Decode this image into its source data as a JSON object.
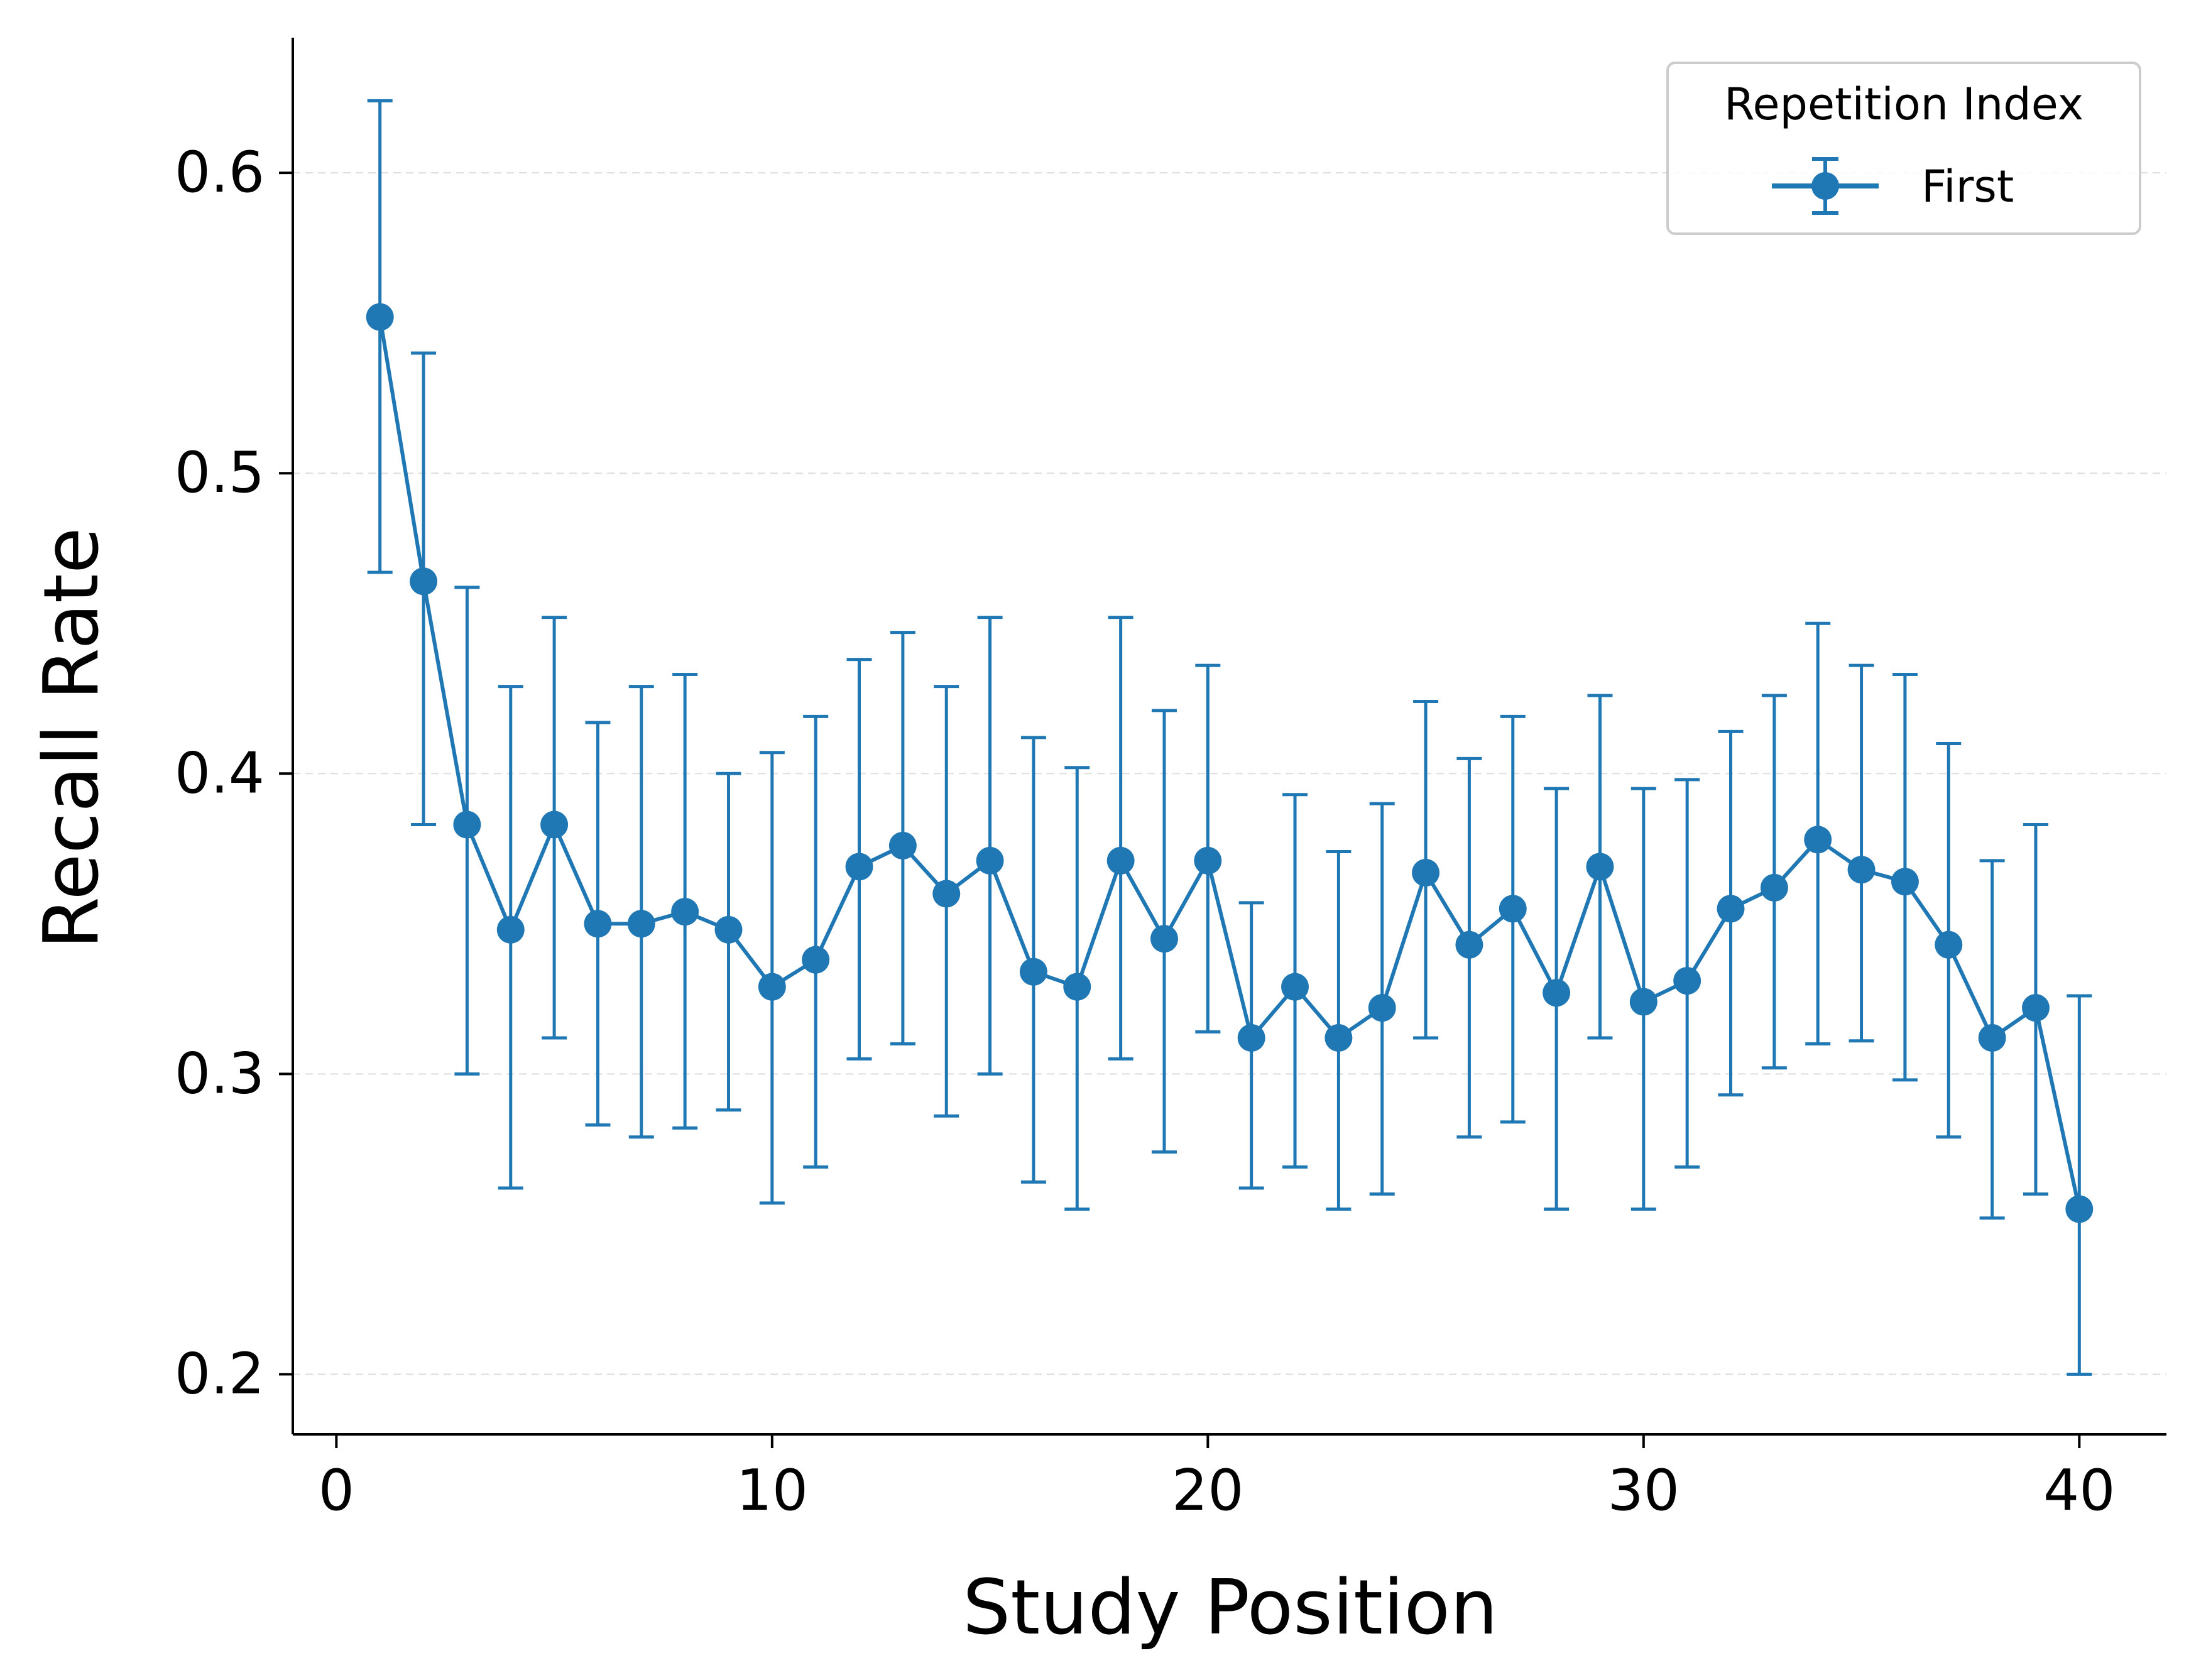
{
  "chart_data": {
    "type": "line",
    "xlabel": "Study Position",
    "ylabel": "Recall Rate",
    "xlim": [
      -1,
      42
    ],
    "ylim": [
      0.18,
      0.645
    ],
    "xticks": [
      0,
      10,
      20,
      30,
      40
    ],
    "yticks": [
      0.2,
      0.3,
      0.4,
      0.5,
      0.6
    ],
    "xtick_labels": [
      "0",
      "10",
      "20",
      "30",
      "40"
    ],
    "ytick_labels": [
      "0.2",
      "0.3",
      "0.4",
      "0.5",
      "0.6"
    ],
    "grid": "horizontal dashed",
    "legend": {
      "title": "Repetition Index",
      "position": "top-right"
    },
    "series": [
      {
        "name": "First",
        "color": "#1f77b4",
        "x": [
          1,
          2,
          3,
          4,
          5,
          6,
          7,
          8,
          9,
          10,
          11,
          12,
          13,
          14,
          15,
          16,
          17,
          18,
          19,
          20,
          21,
          22,
          23,
          24,
          25,
          26,
          27,
          28,
          29,
          30,
          31,
          32,
          33,
          34,
          35,
          36,
          37,
          38,
          39,
          40
        ],
        "y": [
          0.552,
          0.464,
          0.383,
          0.348,
          0.383,
          0.35,
          0.35,
          0.354,
          0.348,
          0.329,
          0.338,
          0.369,
          0.376,
          0.36,
          0.371,
          0.334,
          0.329,
          0.371,
          0.345,
          0.371,
          0.312,
          0.329,
          0.312,
          0.322,
          0.367,
          0.343,
          0.355,
          0.327,
          0.369,
          0.324,
          0.331,
          0.355,
          0.362,
          0.378,
          0.368,
          0.364,
          0.343,
          0.312,
          0.322,
          0.255
        ],
        "err_low": [
          0.467,
          0.383,
          0.3,
          0.262,
          0.312,
          0.283,
          0.279,
          0.282,
          0.288,
          0.257,
          0.269,
          0.305,
          0.31,
          0.286,
          0.3,
          0.264,
          0.255,
          0.305,
          0.274,
          0.314,
          0.262,
          0.269,
          0.255,
          0.26,
          0.312,
          0.279,
          0.284,
          0.255,
          0.312,
          0.255,
          0.269,
          0.293,
          0.302,
          0.31,
          0.311,
          0.298,
          0.279,
          0.252,
          0.26,
          0.2
        ],
        "err_high": [
          0.624,
          0.54,
          0.462,
          0.429,
          0.452,
          0.417,
          0.429,
          0.433,
          0.4,
          0.407,
          0.419,
          0.438,
          0.447,
          0.429,
          0.452,
          0.412,
          0.402,
          0.452,
          0.421,
          0.436,
          0.357,
          0.393,
          0.374,
          0.39,
          0.424,
          0.405,
          0.419,
          0.395,
          0.426,
          0.395,
          0.398,
          0.414,
          0.426,
          0.45,
          0.436,
          0.433,
          0.41,
          0.371,
          0.383,
          0.326
        ]
      }
    ]
  }
}
